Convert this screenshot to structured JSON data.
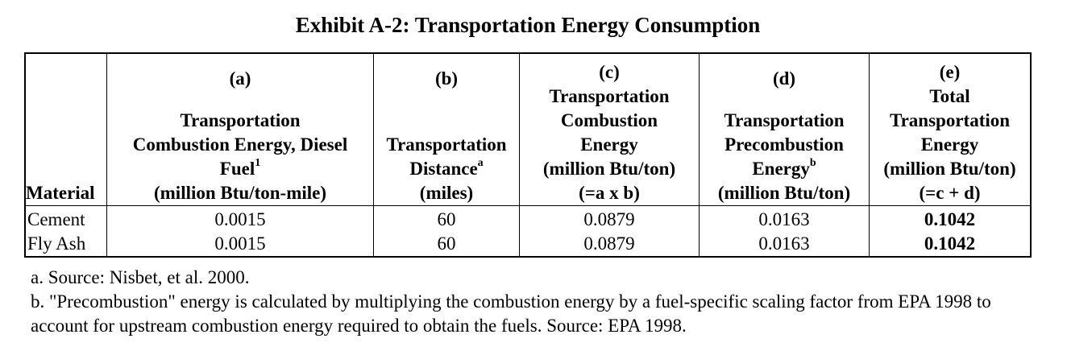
{
  "title": "Exhibit A-2: Transportation Energy Consumption",
  "table": {
    "material_header": "Material",
    "columns": [
      {
        "letter": "(a)",
        "lines": [
          "Transportation",
          "Combustion Energy, Diesel",
          "Fuel",
          "(million Btu/ton-mile)"
        ],
        "sup": "1"
      },
      {
        "letter": "(b)",
        "lines": [
          "Transportation",
          "Distance",
          "(miles)"
        ],
        "sup": "a"
      },
      {
        "letter": "(c)",
        "lines": [
          "Transportation",
          "Combustion",
          "Energy",
          "(million Btu/ton)",
          "(=a x b)"
        ]
      },
      {
        "letter": "(d)",
        "lines": [
          "Transportation",
          "Precombustion",
          "Energy",
          "(million Btu/ton)"
        ],
        "sup": "b"
      },
      {
        "letter": "(e)",
        "lines": [
          "Total",
          "Transportation",
          "Energy",
          "(million Btu/ton)",
          "(=c + d)"
        ]
      }
    ],
    "rows": [
      {
        "material": "Cement",
        "a": "0.0015",
        "b": "60",
        "c": "0.0879",
        "d": "0.0163",
        "e": "0.1042"
      },
      {
        "material": "Fly Ash",
        "a": "0.0015",
        "b": "60",
        "c": "0.0879",
        "d": "0.0163",
        "e": "0.1042"
      }
    ]
  },
  "notes": {
    "a": "a. Source: Nisbet, et al. 2000.",
    "b": "b. \"Precombustion\" energy is calculated by multiplying the combustion energy by a fuel-specific scaling factor from EPA 1998 to account for upstream combustion energy required to obtain the fuels.  Source: EPA 1998."
  }
}
